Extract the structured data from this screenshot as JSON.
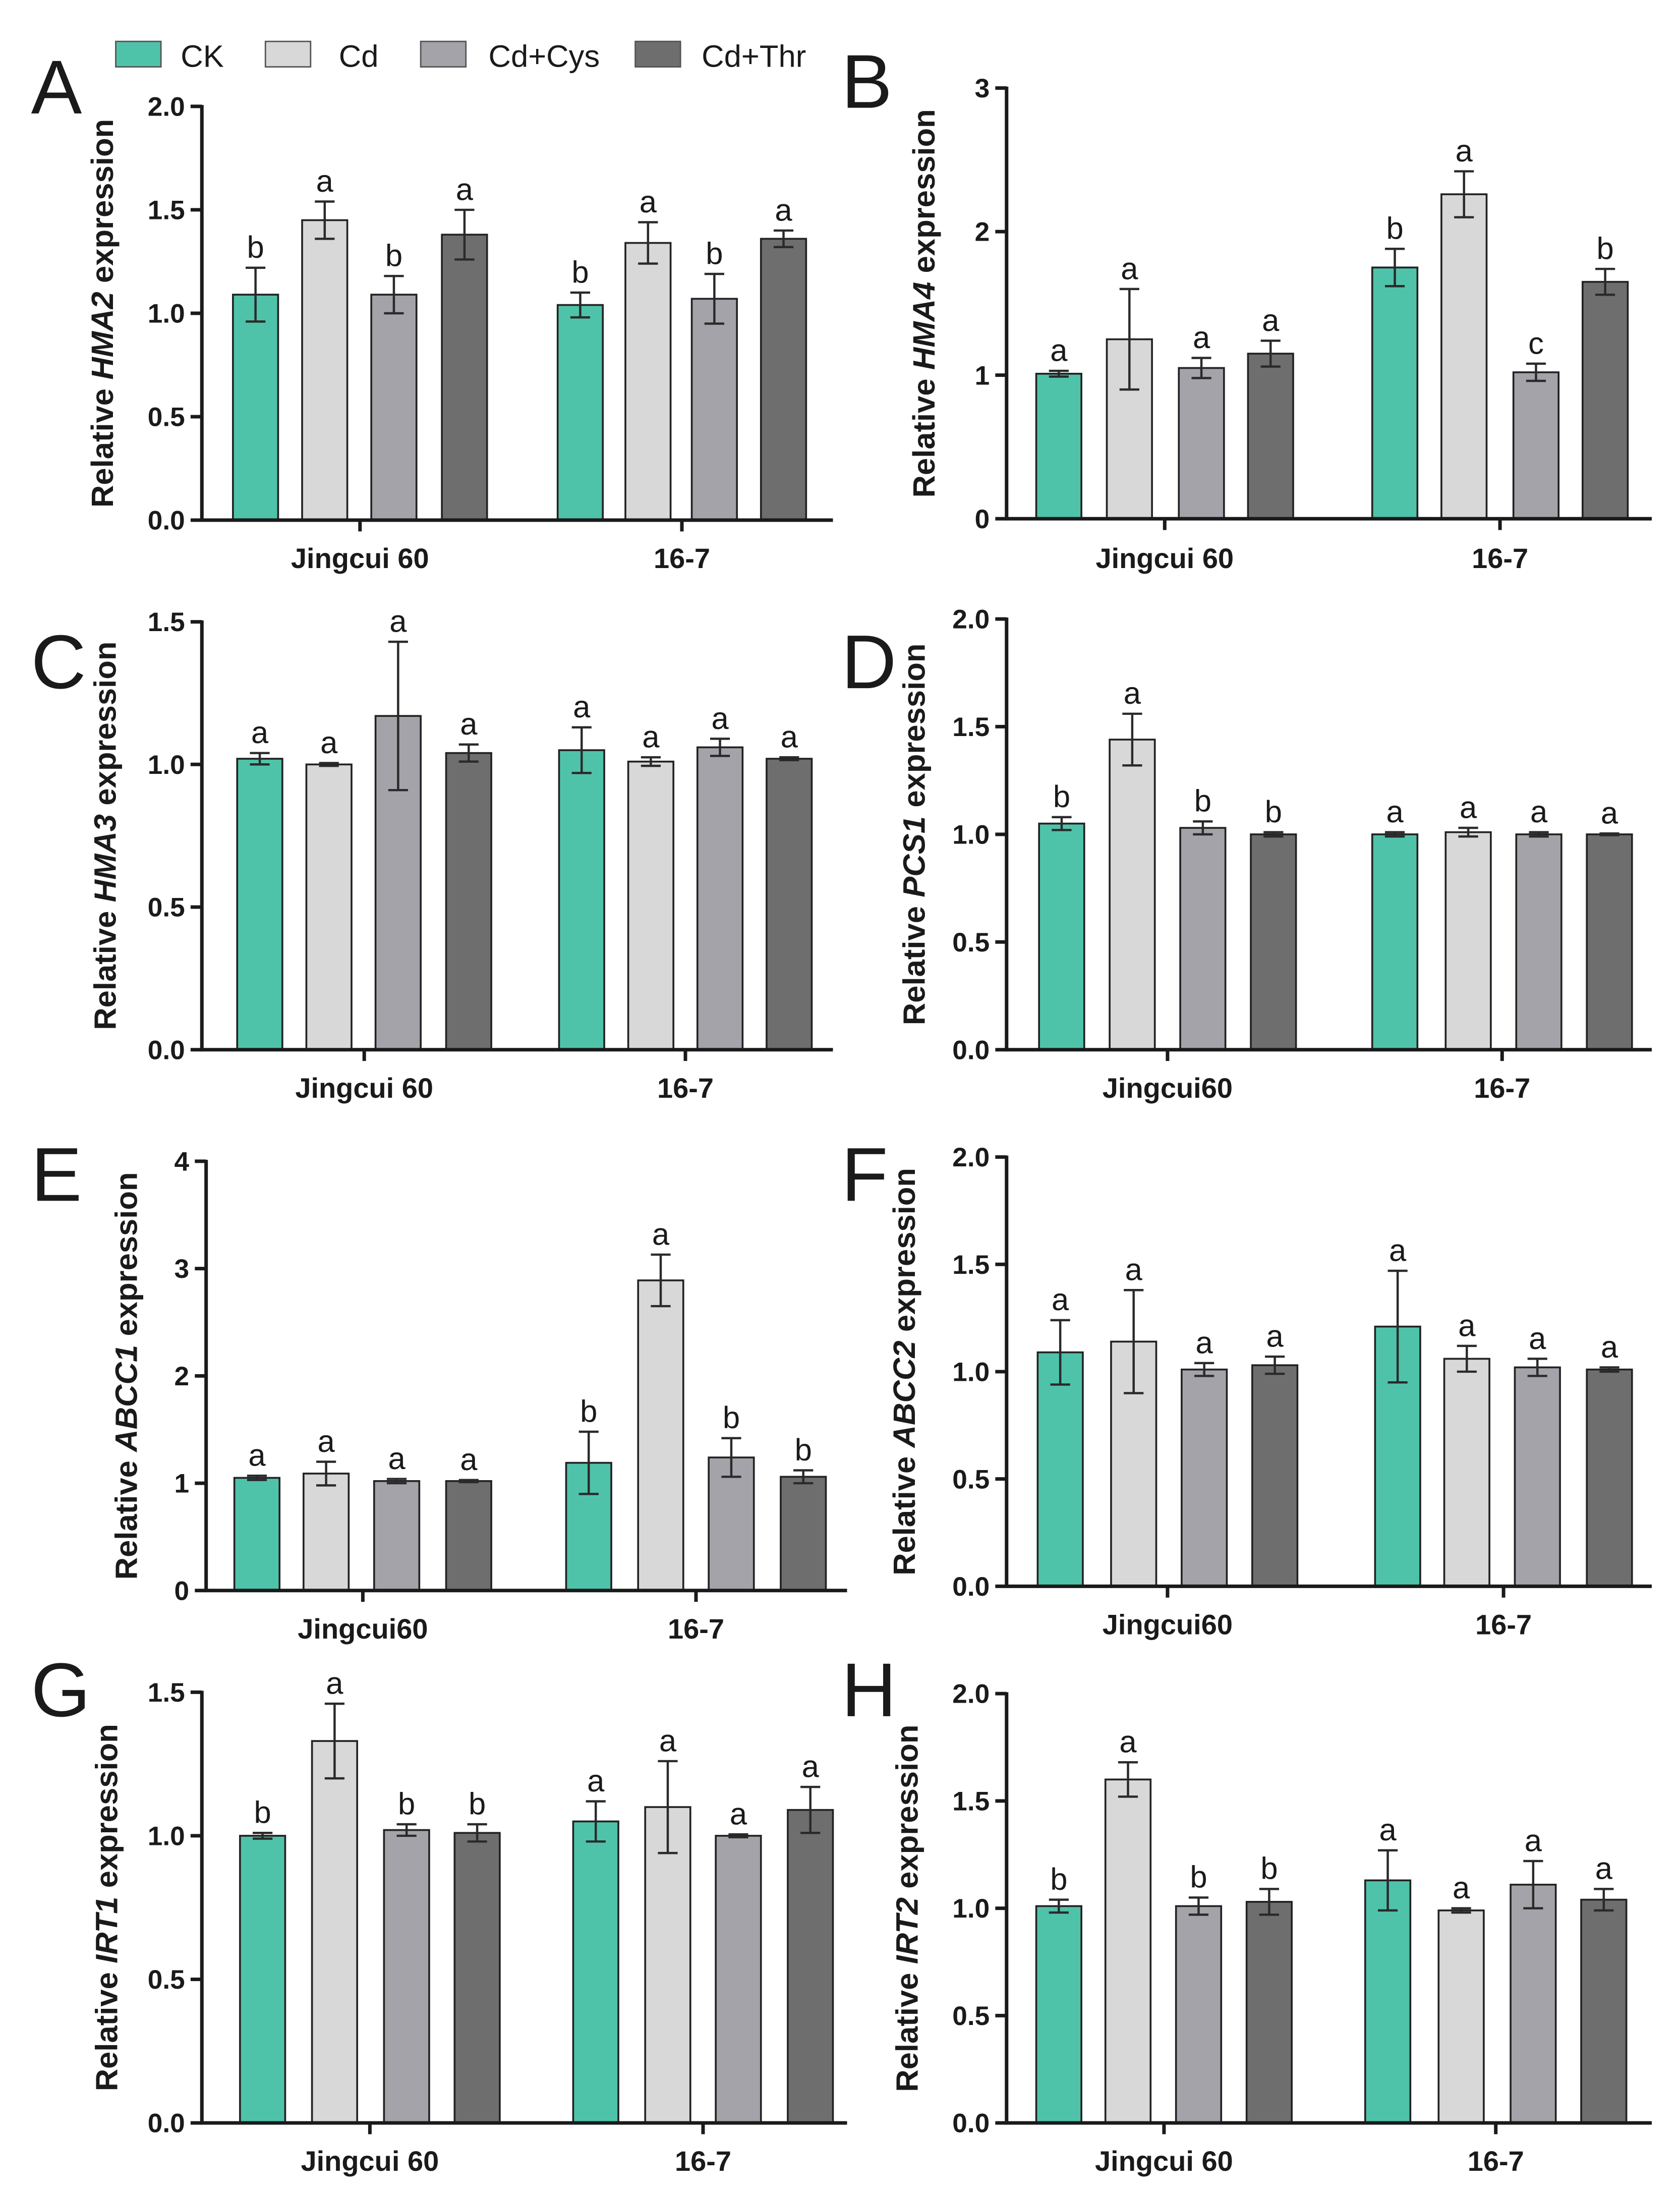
{
  "legend": [
    {
      "label": "CK",
      "color": "#4FC3A9"
    },
    {
      "label": "Cd",
      "color": "#D8D8D8"
    },
    {
      "label": "Cd+Cys",
      "color": "#A4A3A9"
    },
    {
      "label": "Cd+Thr",
      "color": "#6E6E6E"
    }
  ],
  "chart_data": [
    {
      "panel_label": "A",
      "type": "bar",
      "ylabel": {
        "pre": "Relative",
        "gene": "HMA2",
        "post": "expression"
      },
      "categories": [
        "Jingcui 60",
        "16-7"
      ],
      "ylim": [
        0,
        2.0
      ],
      "yticks": [
        "0.0",
        "0.5",
        "1.0",
        "1.5",
        "2.0"
      ],
      "series": [
        {
          "values": [
            1.09,
            1.04
          ],
          "errors": [
            0.13,
            0.06
          ],
          "letters": [
            "b",
            "b"
          ]
        },
        {
          "values": [
            1.45,
            1.34
          ],
          "errors": [
            0.09,
            0.1
          ],
          "letters": [
            "a",
            "a"
          ]
        },
        {
          "values": [
            1.09,
            1.07
          ],
          "errors": [
            0.09,
            0.12
          ],
          "letters": [
            "b",
            "b"
          ]
        },
        {
          "values": [
            1.38,
            1.36
          ],
          "errors": [
            0.12,
            0.04
          ],
          "letters": [
            "a",
            "a"
          ]
        }
      ]
    },
    {
      "panel_label": "B",
      "type": "bar",
      "ylabel": {
        "pre": "Relative",
        "gene": "HMA4",
        "post": "expression"
      },
      "categories": [
        "Jingcui 60",
        "16-7"
      ],
      "ylim": [
        0,
        3
      ],
      "yticks": [
        "0",
        "1",
        "2",
        "3"
      ],
      "series": [
        {
          "values": [
            1.01,
            1.75
          ],
          "errors": [
            0.02,
            0.13
          ],
          "letters": [
            "a",
            "b"
          ]
        },
        {
          "values": [
            1.25,
            2.26
          ],
          "errors": [
            0.35,
            0.16
          ],
          "letters": [
            "a",
            "a"
          ]
        },
        {
          "values": [
            1.05,
            1.02
          ],
          "errors": [
            0.07,
            0.06
          ],
          "letters": [
            "a",
            "c"
          ]
        },
        {
          "values": [
            1.15,
            1.65
          ],
          "errors": [
            0.09,
            0.09
          ],
          "letters": [
            "a",
            "b"
          ]
        }
      ]
    },
    {
      "panel_label": "C",
      "type": "bar",
      "ylabel": {
        "pre": "Relative",
        "gene": "HMA3",
        "post": "expression"
      },
      "categories": [
        "Jingcui 60",
        "16-7"
      ],
      "ylim": [
        0,
        1.5
      ],
      "yticks": [
        "0.0",
        "0.5",
        "1.0",
        "1.5"
      ],
      "series": [
        {
          "values": [
            1.02,
            1.05
          ],
          "errors": [
            0.02,
            0.08
          ],
          "letters": [
            "a",
            "a"
          ]
        },
        {
          "values": [
            1.0,
            1.01
          ],
          "errors": [
            0.005,
            0.015
          ],
          "letters": [
            "a",
            "a"
          ]
        },
        {
          "values": [
            1.17,
            1.06
          ],
          "errors": [
            0.26,
            0.03
          ],
          "letters": [
            "a",
            "a"
          ]
        },
        {
          "values": [
            1.04,
            1.02
          ],
          "errors": [
            0.03,
            0.005
          ],
          "letters": [
            "a",
            "a"
          ]
        }
      ]
    },
    {
      "panel_label": "D",
      "type": "bar",
      "ylabel": {
        "pre": "Relative",
        "gene": "PCS1",
        "post": "expression"
      },
      "categories": [
        "Jingcui60",
        "16-7"
      ],
      "ylim": [
        0,
        2.0
      ],
      "yticks": [
        "0.0",
        "0.5",
        "1.0",
        "1.5",
        "2.0"
      ],
      "series": [
        {
          "values": [
            1.05,
            1.0
          ],
          "errors": [
            0.03,
            0.01
          ],
          "letters": [
            "b",
            "a"
          ]
        },
        {
          "values": [
            1.44,
            1.01
          ],
          "errors": [
            0.12,
            0.02
          ],
          "letters": [
            "a",
            "a"
          ]
        },
        {
          "values": [
            1.03,
            1.0
          ],
          "errors": [
            0.03,
            0.01
          ],
          "letters": [
            "b",
            "a"
          ]
        },
        {
          "values": [
            1.0,
            1.0
          ],
          "errors": [
            0.01,
            0.004
          ],
          "letters": [
            "b",
            "a"
          ]
        }
      ]
    },
    {
      "panel_label": "E",
      "type": "bar",
      "ylabel": {
        "pre": "Relative",
        "gene": "ABCC1",
        "post": "expression"
      },
      "categories": [
        "Jingcui60",
        "16-7"
      ],
      "ylim": [
        0,
        4
      ],
      "yticks": [
        "0",
        "1",
        "2",
        "3",
        "4"
      ],
      "series": [
        {
          "values": [
            1.05,
            1.19
          ],
          "errors": [
            0.02,
            0.29
          ],
          "letters": [
            "a",
            "b"
          ]
        },
        {
          "values": [
            1.09,
            2.89
          ],
          "errors": [
            0.11,
            0.24
          ],
          "letters": [
            "a",
            "a"
          ]
        },
        {
          "values": [
            1.02,
            1.24
          ],
          "errors": [
            0.02,
            0.18
          ],
          "letters": [
            "a",
            "b"
          ]
        },
        {
          "values": [
            1.02,
            1.06
          ],
          "errors": [
            0.01,
            0.06
          ],
          "letters": [
            "a",
            "b"
          ]
        }
      ]
    },
    {
      "panel_label": "F",
      "type": "bar",
      "ylabel": {
        "pre": "Relative",
        "gene": "ABCC2",
        "post": "expression"
      },
      "categories": [
        "Jingcui60",
        "16-7"
      ],
      "ylim": [
        0,
        2.0
      ],
      "yticks": [
        "0.0",
        "0.5",
        "1.0",
        "1.5",
        "2.0"
      ],
      "series": [
        {
          "values": [
            1.09,
            1.21
          ],
          "errors": [
            0.15,
            0.26
          ],
          "letters": [
            "a",
            "a"
          ]
        },
        {
          "values": [
            1.14,
            1.06
          ],
          "errors": [
            0.24,
            0.06
          ],
          "letters": [
            "a",
            "a"
          ]
        },
        {
          "values": [
            1.01,
            1.02
          ],
          "errors": [
            0.03,
            0.04
          ],
          "letters": [
            "a",
            "a"
          ]
        },
        {
          "values": [
            1.03,
            1.01
          ],
          "errors": [
            0.04,
            0.01
          ],
          "letters": [
            "a",
            "a"
          ]
        }
      ]
    },
    {
      "panel_label": "G",
      "type": "bar",
      "ylabel": {
        "pre": "Relative",
        "gene": "IRT1",
        "post": "expression"
      },
      "categories": [
        "Jingcui 60",
        "16-7"
      ],
      "ylim": [
        0,
        1.5
      ],
      "yticks": [
        "0.0",
        "0.5",
        "1.0",
        "1.5"
      ],
      "series": [
        {
          "values": [
            1.0,
            1.05
          ],
          "errors": [
            0.01,
            0.07
          ],
          "letters": [
            "b",
            "a"
          ]
        },
        {
          "values": [
            1.33,
            1.1
          ],
          "errors": [
            0.13,
            0.16
          ],
          "letters": [
            "a",
            "a"
          ]
        },
        {
          "values": [
            1.02,
            1.0
          ],
          "errors": [
            0.02,
            0.005
          ],
          "letters": [
            "b",
            "a"
          ]
        },
        {
          "values": [
            1.01,
            1.09
          ],
          "errors": [
            0.03,
            0.08
          ],
          "letters": [
            "b",
            "a"
          ]
        }
      ]
    },
    {
      "panel_label": "H",
      "type": "bar",
      "ylabel": {
        "pre": "Relative",
        "gene": "IRT2",
        "post": "expression"
      },
      "categories": [
        "Jingcui 60",
        "16-7"
      ],
      "ylim": [
        0,
        2.0
      ],
      "yticks": [
        "0.0",
        "0.5",
        "1.0",
        "1.5",
        "2.0"
      ],
      "series": [
        {
          "values": [
            1.01,
            1.13
          ],
          "errors": [
            0.03,
            0.14
          ],
          "letters": [
            "b",
            "a"
          ]
        },
        {
          "values": [
            1.6,
            0.99
          ],
          "errors": [
            0.08,
            0.01
          ],
          "letters": [
            "a",
            "a"
          ]
        },
        {
          "values": [
            1.01,
            1.11
          ],
          "errors": [
            0.04,
            0.11
          ],
          "letters": [
            "b",
            "a"
          ]
        },
        {
          "values": [
            1.03,
            1.04
          ],
          "errors": [
            0.06,
            0.05
          ],
          "letters": [
            "b",
            "a"
          ]
        }
      ]
    }
  ]
}
